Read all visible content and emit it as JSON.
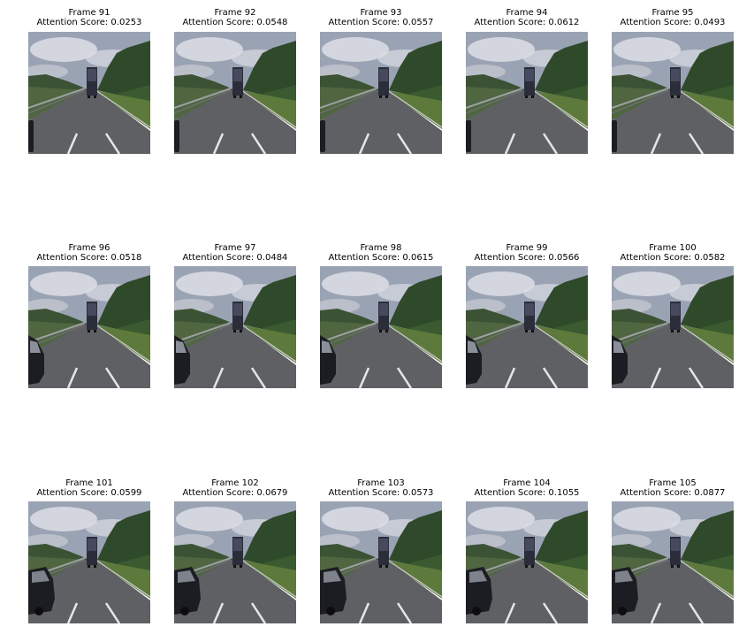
{
  "frames": [
    {
      "frame": "Frame 91",
      "score": "Attention Score: 0.0253",
      "car": 0
    },
    {
      "frame": "Frame 92",
      "score": "Attention Score: 0.0548",
      "car": 0
    },
    {
      "frame": "Frame 93",
      "score": "Attention Score: 0.0557",
      "car": 0
    },
    {
      "frame": "Frame 94",
      "score": "Attention Score: 0.0612",
      "car": 0
    },
    {
      "frame": "Frame 95",
      "score": "Attention Score: 0.0493",
      "car": 0
    },
    {
      "frame": "Frame 96",
      "score": "Attention Score: 0.0518",
      "car": 1
    },
    {
      "frame": "Frame 97",
      "score": "Attention Score: 0.0484",
      "car": 1
    },
    {
      "frame": "Frame 98",
      "score": "Attention Score: 0.0615",
      "car": 1
    },
    {
      "frame": "Frame 99",
      "score": "Attention Score: 0.0566",
      "car": 1
    },
    {
      "frame": "Frame 100",
      "score": "Attention Score: 0.0582",
      "car": 1
    },
    {
      "frame": "Frame 101",
      "score": "Attention Score: 0.0599",
      "car": 2
    },
    {
      "frame": "Frame 102",
      "score": "Attention Score: 0.0679",
      "car": 2
    },
    {
      "frame": "Frame 103",
      "score": "Attention Score: 0.0573",
      "car": 2
    },
    {
      "frame": "Frame 104",
      "score": "Attention Score: 0.1055",
      "car": 2
    },
    {
      "frame": "Frame 105",
      "score": "Attention Score: 0.0877",
      "car": 2
    }
  ],
  "colors": {
    "sky": "#9aa3b4",
    "cloud": "#d9dbe2",
    "trees": "#2f4a2a",
    "grass": "#5d7a3c",
    "road": "#5e6064",
    "lane": "#e6e6e6",
    "truck": "#2b2d3a",
    "car": "#1c1d22"
  }
}
